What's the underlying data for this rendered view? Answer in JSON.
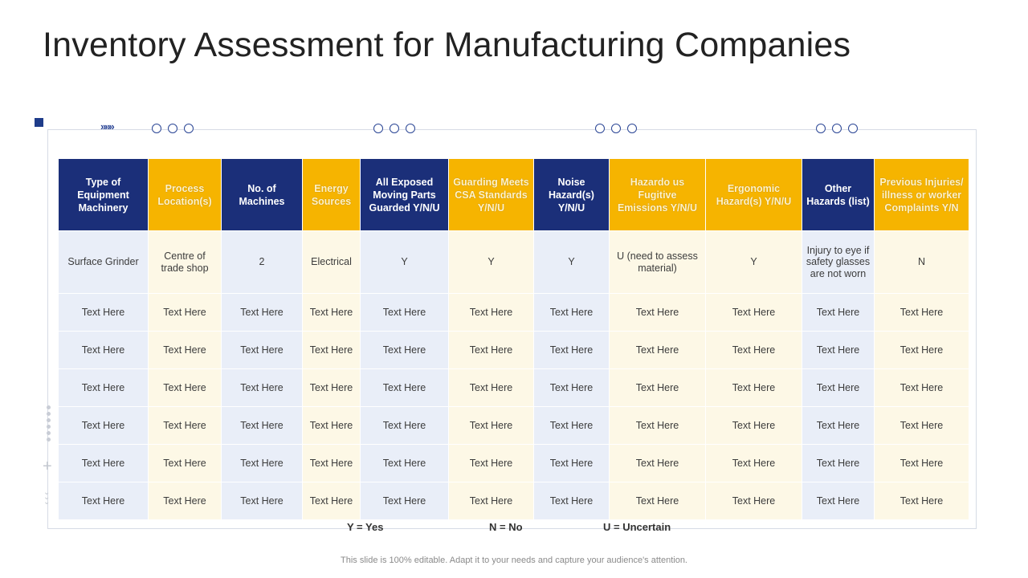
{
  "title": "Inventory Assessment for Manufacturing Companies",
  "decor": {
    "chevrons": "»»»"
  },
  "columns": [
    {
      "label": "Type of Equipment Machinery",
      "color": "navy"
    },
    {
      "label": "Process Location(s)",
      "color": "gold"
    },
    {
      "label": "No. of Machines",
      "color": "navy"
    },
    {
      "label": "Energy Sources",
      "color": "gold"
    },
    {
      "label": "All Exposed Moving Parts Guarded Y/N/U",
      "color": "navy"
    },
    {
      "label": "Guarding Meets CSA Standards Y/N/U",
      "color": "gold"
    },
    {
      "label": "Noise Hazard(s) Y/N/U",
      "color": "navy"
    },
    {
      "label": "Hazardo us Fugitive Emissions Y/N/U",
      "color": "gold"
    },
    {
      "label": "Ergonomic Hazard(s) Y/N/U",
      "color": "gold"
    },
    {
      "label": "Other Hazards (list)",
      "color": "navy"
    },
    {
      "label": "Previous Injuries/ illness or worker Complaints Y/N",
      "color": "gold"
    }
  ],
  "rows": [
    [
      "Surface Grinder",
      "Centre of trade shop",
      "2",
      "Electrical",
      "Y",
      "Y",
      "Y",
      "U (need to assess material)",
      "Y",
      "Injury to eye if safety glasses are not worn",
      "N"
    ],
    [
      "Text Here",
      "Text Here",
      "Text Here",
      "Text Here",
      "Text Here",
      "Text Here",
      "Text Here",
      "Text Here",
      "Text Here",
      "Text Here",
      "Text Here"
    ],
    [
      "Text Here",
      "Text Here",
      "Text Here",
      "Text Here",
      "Text Here",
      "Text Here",
      "Text Here",
      "Text Here",
      "Text Here",
      "Text Here",
      "Text Here"
    ],
    [
      "Text Here",
      "Text Here",
      "Text Here",
      "Text Here",
      "Text Here",
      "Text Here",
      "Text Here",
      "Text Here",
      "Text Here",
      "Text Here",
      "Text Here"
    ],
    [
      "Text Here",
      "Text Here",
      "Text Here",
      "Text Here",
      "Text Here",
      "Text Here",
      "Text Here",
      "Text Here",
      "Text Here",
      "Text Here",
      "Text Here"
    ],
    [
      "Text Here",
      "Text Here",
      "Text Here",
      "Text Here",
      "Text Here",
      "Text Here",
      "Text Here",
      "Text Here",
      "Text Here",
      "Text Here",
      "Text Here"
    ],
    [
      "Text Here",
      "Text Here",
      "Text Here",
      "Text Here",
      "Text Here",
      "Text Here",
      "Text Here",
      "Text Here",
      "Text Here",
      "Text Here",
      "Text Here"
    ]
  ],
  "legend": {
    "yes": "Y = Yes",
    "no": "N = No",
    "uncertain": "U = Uncertain"
  },
  "footer": "This slide is 100% editable. Adapt it to your needs and capture your audience's attention.",
  "colors": {
    "navy": "#1b2f79",
    "gold": "#f6b400",
    "blue_cell": "#e9eef8",
    "yellow_cell": "#fdf8e6"
  }
}
